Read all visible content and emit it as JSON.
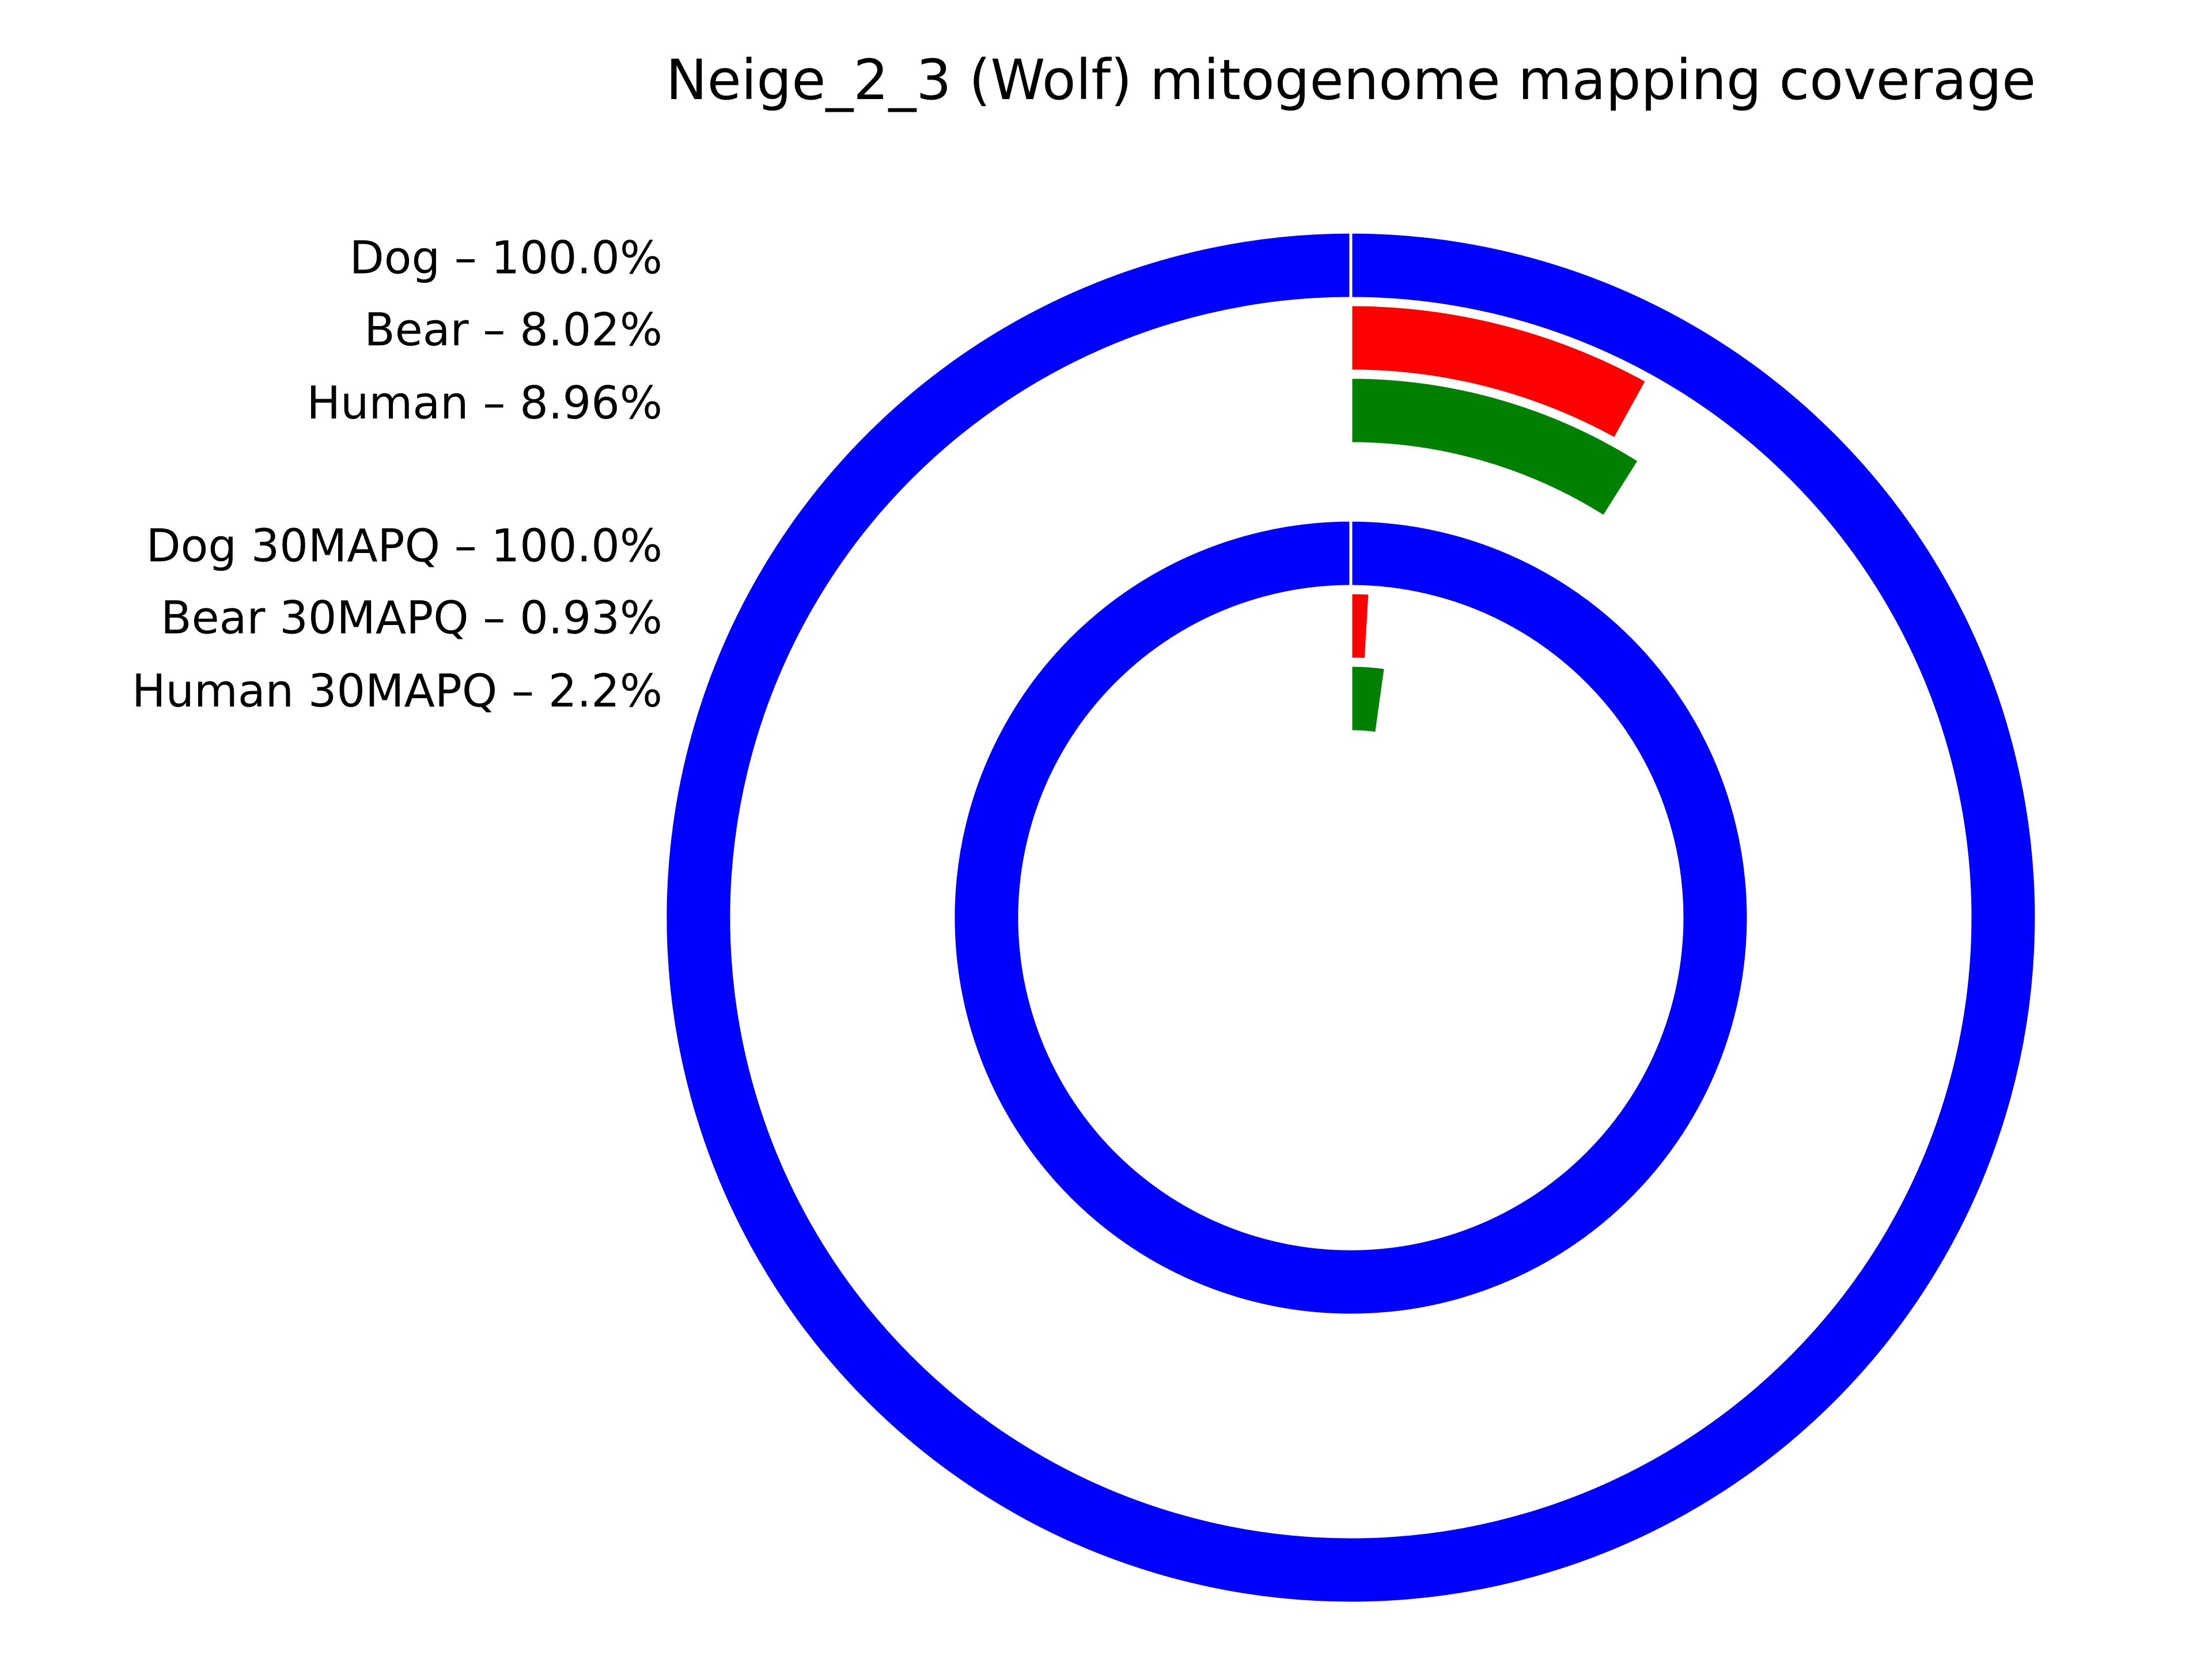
{
  "chart_data": {
    "type": "radial-bar",
    "title": "Neige_2_3 (Wolf) mitogenome mapping coverage",
    "unit": "%",
    "xlim": [
      0,
      100
    ],
    "groups": [
      {
        "bars": [
          {
            "label": "Dog – 100.0%",
            "value": 100.0,
            "color": "#0000ff"
          },
          {
            "label": "Bear – 8.02%",
            "value": 8.02,
            "color": "#ff0000"
          },
          {
            "label": "Human – 8.96%",
            "value": 8.96,
            "color": "#008000"
          }
        ]
      },
      {
        "bars": [
          {
            "label": "Dog 30MAPQ – 100.0%",
            "value": 100.0,
            "color": "#0000ff"
          },
          {
            "label": "Bear 30MAPQ – 0.93%",
            "value": 0.93,
            "color": "#ff0000"
          },
          {
            "label": "Human 30MAPQ – 2.2%",
            "value": 2.2,
            "color": "#008000"
          }
        ]
      }
    ]
  }
}
